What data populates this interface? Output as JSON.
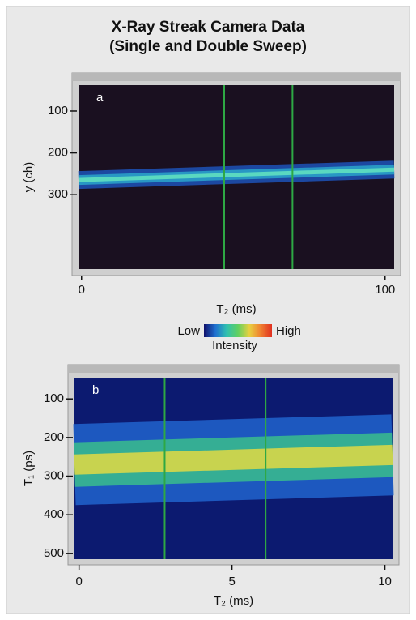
{
  "title": "X-Ray Streak Camera Data",
  "subtitle": "(Single and Double Sweep)",
  "colorbar": {
    "low_label": "Low",
    "high_label": "High",
    "label": "Intensity",
    "colors": [
      "#10106a",
      "#1f6fd0",
      "#30c0b0",
      "#60d060",
      "#e8d040",
      "#f08030",
      "#e03020"
    ]
  },
  "chart_data": [
    {
      "type": "image",
      "panel_label": "a",
      "xlabel": "T₂ (ms)",
      "ylabel": "y (ch)",
      "xlim": [
        -1,
        103
      ],
      "ylim": [
        478,
        38
      ],
      "xticks": [
        0,
        100
      ],
      "yticks": [
        100,
        200,
        300
      ],
      "markers": [
        47,
        69.5
      ],
      "marker_color": "#2ea844",
      "streak": [
        265,
        240
      ],
      "background": "#1a1020",
      "band_colors": [
        "#1d4fb0",
        "#2aa0c8",
        "#60e0c0"
      ]
    },
    {
      "type": "image",
      "panel_label": "b",
      "xlabel": "T₂ (ms)",
      "ylabel": "T₁ (ps)",
      "xlim": [
        -0.15,
        10.25
      ],
      "ylim": [
        515,
        45
      ],
      "xticks": [
        0,
        5,
        10
      ],
      "yticks": [
        100,
        200,
        300,
        400,
        500
      ],
      "markers": [
        2.8,
        6.1
      ],
      "marker_color": "#2ea844",
      "streak": [
        270,
        245
      ],
      "background": "#0c1a70",
      "band_colors": [
        "#1f5fc8",
        "#38b890",
        "#d8d848"
      ]
    }
  ]
}
